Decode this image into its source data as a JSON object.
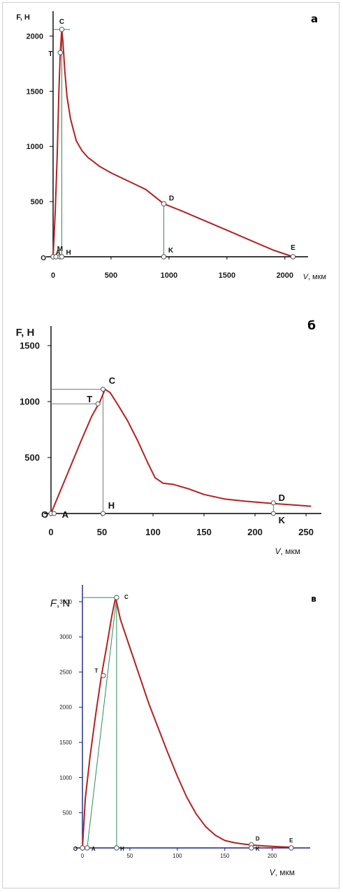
{
  "chart_data": [
    {
      "type": "line",
      "panel_label": "а",
      "ylabel": "F, Н",
      "xlabel_italic": "V",
      "xlabel_unit": ", мкм",
      "xlim": [
        0,
        2200
      ],
      "ylim": [
        0,
        2200
      ],
      "xticks": [
        0,
        500,
        1000,
        1500,
        2000
      ],
      "xtick_labels": [
        "0",
        "500",
        "1000",
        "1500",
        "2000"
      ],
      "yticks": [
        500,
        1000,
        1500,
        2000
      ],
      "ytick_labels": [
        "500",
        "1000",
        "1500",
        "2000"
      ],
      "series": [
        {
          "color": "#b22222",
          "x": [
            0,
            18,
            35,
            50,
            62,
            75,
            85,
            100,
            120,
            150,
            200,
            250,
            300,
            400,
            500,
            600,
            700,
            800,
            955,
            1100,
            1300,
            1500,
            1700,
            1900,
            2070
          ],
          "y": [
            0,
            400,
            900,
            1500,
            1850,
            2060,
            1950,
            1700,
            1450,
            1250,
            1050,
            960,
            900,
            820,
            760,
            710,
            660,
            610,
            480,
            420,
            330,
            240,
            150,
            60,
            0
          ]
        }
      ],
      "points": [
        {
          "label": "O",
          "x": 0,
          "y": 0
        },
        {
          "label": "A",
          "x": 25,
          "y": 0
        },
        {
          "label": "M",
          "x": 60,
          "y": 0
        },
        {
          "label": "H",
          "x": 75,
          "y": 0
        },
        {
          "label": "T",
          "x": 62,
          "y": 1850
        },
        {
          "label": "C",
          "x": 75,
          "y": 2060
        },
        {
          "label": "D",
          "x": 955,
          "y": 480
        },
        {
          "label": "K",
          "x": 955,
          "y": 0
        },
        {
          "label": "E",
          "x": 2070,
          "y": 0
        }
      ]
    },
    {
      "type": "line",
      "panel_label": "б",
      "ylabel": "F, Н",
      "xlabel_italic": "V",
      "xlabel_unit": ", мкм",
      "xlim": [
        0,
        265
      ],
      "ylim": [
        0,
        1650
      ],
      "xticks": [
        0,
        50,
        100,
        150,
        200,
        250
      ],
      "xtick_labels": [
        "0",
        "50",
        "100",
        "150",
        "200",
        "250"
      ],
      "yticks": [
        500,
        1000,
        1500
      ],
      "ytick_labels": [
        "500",
        "1000",
        "1500"
      ],
      "series": [
        {
          "color": "#b22222",
          "x": [
            0,
            10,
            20,
            30,
            40,
            48,
            53,
            58,
            65,
            75,
            85,
            95,
            102,
            110,
            120,
            135,
            150,
            170,
            190,
            217,
            240,
            255
          ],
          "y": [
            0,
            220,
            440,
            660,
            870,
            1000,
            1110,
            1080,
            980,
            830,
            650,
            450,
            320,
            270,
            260,
            220,
            170,
            130,
            110,
            90,
            75,
            65
          ]
        }
      ],
      "points": [
        {
          "label": "O",
          "x": 0,
          "y": 0
        },
        {
          "label": "A",
          "x": 3,
          "y": 0
        },
        {
          "label": "T",
          "x": 46,
          "y": 980
        },
        {
          "label": "C",
          "x": 51,
          "y": 1110
        },
        {
          "label": "H",
          "x": 51,
          "y": 0
        },
        {
          "label": "D",
          "x": 218,
          "y": 95
        },
        {
          "label": "K",
          "x": 218,
          "y": 0
        }
      ]
    },
    {
      "type": "line",
      "panel_label": "в",
      "ylabel_italic": "F",
      "ylabel_unit": ", N",
      "xlabel_italic": "V",
      "xlabel_unit": ", мкм",
      "xlim": [
        0,
        240
      ],
      "ylim": [
        0,
        3700
      ],
      "xticks": [
        0,
        50,
        100,
        150,
        200
      ],
      "xtick_labels": [
        "0",
        "50",
        "100",
        "150",
        "200"
      ],
      "yticks": [
        500,
        1000,
        1500,
        2000,
        2500,
        3000,
        3500
      ],
      "ytick_labels": [
        "500",
        "1000",
        "1500",
        "2000",
        "2500",
        "3000",
        "3500"
      ],
      "series": [
        {
          "color": "#b22222",
          "x": [
            0,
            3,
            8,
            14,
            20,
            26,
            31,
            35,
            40,
            50,
            60,
            70,
            80,
            90,
            100,
            110,
            120,
            130,
            140,
            150,
            160,
            170,
            180,
            190,
            200,
            210,
            220
          ],
          "y": [
            0,
            700,
            1300,
            1900,
            2450,
            2900,
            3300,
            3560,
            3250,
            2850,
            2450,
            2050,
            1700,
            1350,
            1020,
            720,
            480,
            300,
            180,
            105,
            75,
            55,
            40,
            30,
            22,
            15,
            10
          ]
        }
      ],
      "points": [
        {
          "label": "O",
          "x": 0,
          "y": 0
        },
        {
          "label": "A",
          "x": 5,
          "y": 0
        },
        {
          "label": "T",
          "x": 22,
          "y": 2450
        },
        {
          "label": "C",
          "x": 36,
          "y": 3560
        },
        {
          "label": "H",
          "x": 36,
          "y": 0
        },
        {
          "label": "D",
          "x": 178,
          "y": 45
        },
        {
          "label": "K",
          "x": 178,
          "y": 0
        },
        {
          "label": "E",
          "x": 220,
          "y": 0
        }
      ]
    }
  ]
}
